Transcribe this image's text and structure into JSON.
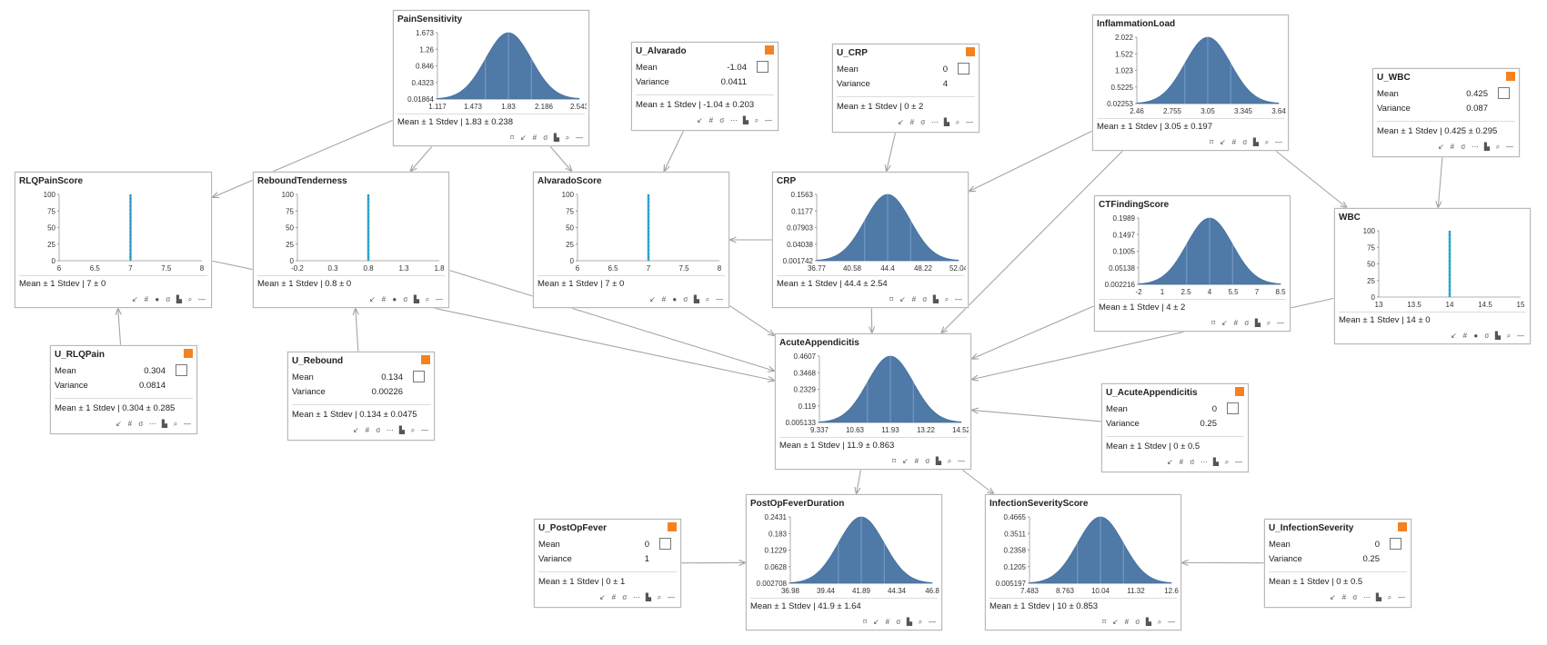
{
  "stat_label": "Mean ± 1 Stdev",
  "mean_label": "Mean",
  "variance_label": "Variance",
  "toolbar_icons": [
    "pin-icon",
    "collapse-icon",
    "grid-icon",
    "dot-icon",
    "sigma-icon",
    "ellipsis-icon",
    "histogram-icon",
    "zoom-icon",
    "menu-icon"
  ],
  "nodes": [
    {
      "id": "PainSensitivity",
      "title": "PainSensitivity",
      "kind": "gauss",
      "stat": "1.83 ± 0.238",
      "yticks": [
        "1.673",
        "1.26",
        "0.846",
        "0.4323",
        "0.01864"
      ],
      "xticks": [
        "1.117",
        "1.473",
        "1.83",
        "2.186",
        "2.543"
      ]
    },
    {
      "id": "RLQPainScore",
      "title": "RLQPainScore",
      "kind": "spike",
      "stat": "7 ± 0",
      "yticks": [
        "100",
        "75",
        "50",
        "25",
        "0"
      ],
      "xticks": [
        "6",
        "6.5",
        "7",
        "7.5",
        "8"
      ],
      "spike_value": 7
    },
    {
      "id": "ReboundTenderness",
      "title": "ReboundTenderness",
      "kind": "spike",
      "stat": "0.8 ± 0",
      "yticks": [
        "100",
        "75",
        "50",
        "25",
        "0"
      ],
      "xticks": [
        "-0.2",
        "0.3",
        "0.8",
        "1.3",
        "1.8"
      ],
      "spike_value": 0.8
    },
    {
      "id": "AlvaradoScore",
      "title": "AlvaradoScore",
      "kind": "spike",
      "stat": "7 ± 0",
      "yticks": [
        "100",
        "75",
        "50",
        "25",
        "0"
      ],
      "xticks": [
        "6",
        "6.5",
        "7",
        "7.5",
        "8"
      ],
      "spike_value": 7
    },
    {
      "id": "CRP",
      "title": "CRP",
      "kind": "gauss",
      "stat": "44.4 ± 2.54",
      "yticks": [
        "0.1563",
        "0.1177",
        "0.07903",
        "0.04038",
        "0.001742"
      ],
      "xticks": [
        "36.77",
        "40.58",
        "44.4",
        "48.22",
        "52.04"
      ]
    },
    {
      "id": "InflammationLoad",
      "title": "InflammationLoad",
      "kind": "gauss",
      "stat": "3.05 ± 0.197",
      "yticks": [
        "2.022",
        "1.522",
        "1.023",
        "0.5225",
        "0.02253"
      ],
      "xticks": [
        "2.46",
        "2.755",
        "3.05",
        "3.345",
        "3.64"
      ]
    },
    {
      "id": "CTFindingScore",
      "title": "CTFindingScore",
      "kind": "gauss",
      "stat": "4 ± 2",
      "yticks": [
        "0.1989",
        "0.1497",
        "0.1005",
        "0.05138",
        "0.002216"
      ],
      "xticks": [
        "-2",
        "1",
        "2.5",
        "4",
        "5.5",
        "7",
        "8.5"
      ]
    },
    {
      "id": "WBC",
      "title": "WBC",
      "kind": "spike",
      "stat": "14 ± 0",
      "yticks": [
        "100",
        "75",
        "50",
        "25",
        "0"
      ],
      "xticks": [
        "13",
        "13.5",
        "14",
        "14.5",
        "15"
      ],
      "spike_value": 14
    },
    {
      "id": "AcuteAppendicitis",
      "title": "AcuteAppendicitis",
      "kind": "gauss",
      "stat": "11.9 ± 0.863",
      "yticks": [
        "0.4607",
        "0.3468",
        "0.2329",
        "0.119",
        "0.005133"
      ],
      "xticks": [
        "9.337",
        "10.63",
        "11.93",
        "13.22",
        "14.52"
      ]
    },
    {
      "id": "PostOpFeverDuration",
      "title": "PostOpFeverDuration",
      "kind": "gauss",
      "stat": "41.9 ± 1.64",
      "yticks": [
        "0.2431",
        "0.183",
        "0.1229",
        "0.0628",
        "0.002708"
      ],
      "xticks": [
        "36.98",
        "39.44",
        "41.89",
        "44.34",
        "46.8"
      ]
    },
    {
      "id": "InfectionSeverityScore",
      "title": "InfectionSeverityScore",
      "kind": "gauss",
      "stat": "10 ± 0.853",
      "yticks": [
        "0.4665",
        "0.3511",
        "0.2358",
        "0.1205",
        "0.005197"
      ],
      "xticks": [
        "7.483",
        "8.763",
        "10.04",
        "11.32",
        "12.6"
      ]
    },
    {
      "id": "U_Alvarado",
      "title": "U_Alvarado",
      "kind": "input",
      "mean": "-1.04",
      "variance": "0.0411",
      "stat": "-1.04 ± 0.203"
    },
    {
      "id": "U_CRP",
      "title": "U_CRP",
      "kind": "input",
      "mean": "0",
      "variance": "4",
      "stat": "0 ± 2"
    },
    {
      "id": "U_WBC",
      "title": "U_WBC",
      "kind": "input",
      "mean": "0.425",
      "variance": "0.087",
      "stat": "0.425 ± 0.295"
    },
    {
      "id": "U_RLQPain",
      "title": "U_RLQPain",
      "kind": "input",
      "mean": "0.304",
      "variance": "0.0814",
      "stat": "0.304 ± 0.285"
    },
    {
      "id": "U_Rebound",
      "title": "U_Rebound",
      "kind": "input",
      "mean": "0.134",
      "variance": "0.00226",
      "stat": "0.134 ± 0.0475"
    },
    {
      "id": "U_AcuteAppendicitis",
      "title": "U_AcuteAppendicitis",
      "kind": "input",
      "mean": "0",
      "variance": "0.25",
      "stat": "0 ± 0.5"
    },
    {
      "id": "U_PostOpFever",
      "title": "U_PostOpFever",
      "kind": "input",
      "mean": "0",
      "variance": "1",
      "stat": "0 ± 1"
    },
    {
      "id": "U_InfectionSeverity",
      "title": "U_InfectionSeverity",
      "kind": "input",
      "mean": "0",
      "variance": "0.25",
      "stat": "0 ± 0.5"
    }
  ],
  "edges": [
    [
      "PainSensitivity",
      "RLQPainScore"
    ],
    [
      "PainSensitivity",
      "ReboundTenderness"
    ],
    [
      "PainSensitivity",
      "AlvaradoScore"
    ],
    [
      "U_Alvarado",
      "AlvaradoScore"
    ],
    [
      "U_CRP",
      "CRP"
    ],
    [
      "InflammationLoad",
      "CRP"
    ],
    [
      "InflammationLoad",
      "AcuteAppendicitis"
    ],
    [
      "InflammationLoad",
      "WBC"
    ],
    [
      "U_WBC",
      "WBC"
    ],
    [
      "CRP",
      "AlvaradoScore"
    ],
    [
      "U_RLQPain",
      "RLQPainScore"
    ],
    [
      "U_Rebound",
      "ReboundTenderness"
    ],
    [
      "RLQPainScore",
      "AcuteAppendicitis"
    ],
    [
      "ReboundTenderness",
      "AcuteAppendicitis"
    ],
    [
      "AlvaradoScore",
      "AcuteAppendicitis"
    ],
    [
      "CRP",
      "AcuteAppendicitis"
    ],
    [
      "CTFindingScore",
      "AcuteAppendicitis"
    ],
    [
      "WBC",
      "AcuteAppendicitis"
    ],
    [
      "U_AcuteAppendicitis",
      "AcuteAppendicitis"
    ],
    [
      "AcuteAppendicitis",
      "PostOpFeverDuration"
    ],
    [
      "AcuteAppendicitis",
      "InfectionSeverityScore"
    ],
    [
      "U_PostOpFever",
      "PostOpFeverDuration"
    ],
    [
      "U_InfectionSeverity",
      "InfectionSeverityScore"
    ]
  ]
}
